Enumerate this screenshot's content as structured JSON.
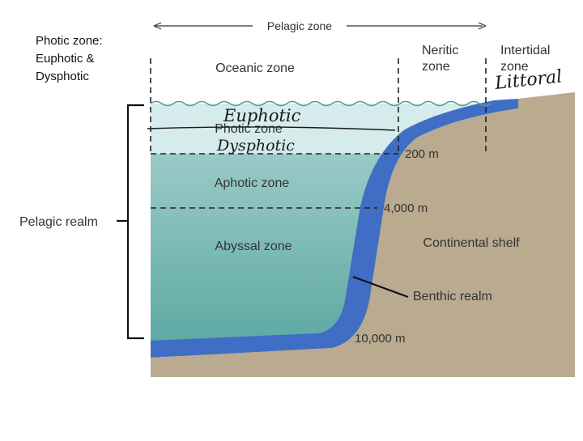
{
  "diagram": {
    "top_arrow_label": "Pelagic zone",
    "side_note": "Photic zone:\nEuphotic &\nDysphotic",
    "zones": {
      "oceanic": "Oceanic zone",
      "neritic": "Neritic\nzone",
      "intertidal": "Intertidal\nzone",
      "photic": "Photic zone",
      "aphotic": "Aphotic zone",
      "abyssal": "Abyssal zone",
      "continental_shelf": "Continental shelf"
    },
    "depths": {
      "d200": "200 m",
      "d4000": "4,000 m",
      "d10000": "10,000 m"
    },
    "realms": {
      "pelagic": "Pelagic realm",
      "benthic": "Benthic realm"
    },
    "handwritten": {
      "euphotic": "Euphotic",
      "dysphotic": "Dysphotic",
      "littoral": "Littoral"
    },
    "colors": {
      "photic_water": "#d6ebeb",
      "aphotic_water": "#a7d0cd",
      "abyssal_water": "#62aca7",
      "benthic_layer": "#3f6ec4",
      "seafloor": "#b9aa90",
      "dashed_lines": "#222222"
    }
  }
}
